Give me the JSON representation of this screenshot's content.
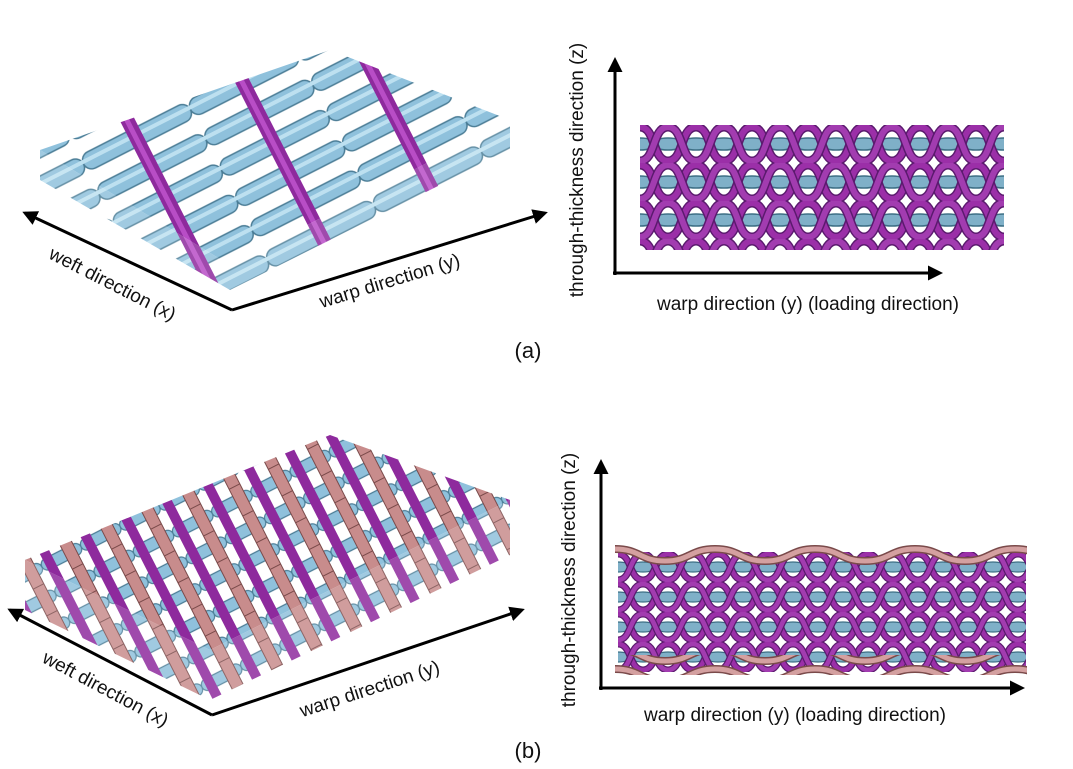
{
  "panels": [
    {
      "label": "(a)",
      "left_view": {
        "x_axis": "weft direction (x)",
        "y_axis": "warp direction (y)"
      },
      "right_view": {
        "z_axis": "through-thickness direction (z)",
        "y_axis": "warp direction (y) (loading direction)"
      }
    },
    {
      "label": "(b)",
      "left_view": {
        "x_axis": "weft direction (x)",
        "y_axis": "warp direction (y)"
      },
      "right_view": {
        "z_axis": "through-thickness direction (z)",
        "y_axis": "warp direction (y) (loading direction)"
      }
    }
  ]
}
